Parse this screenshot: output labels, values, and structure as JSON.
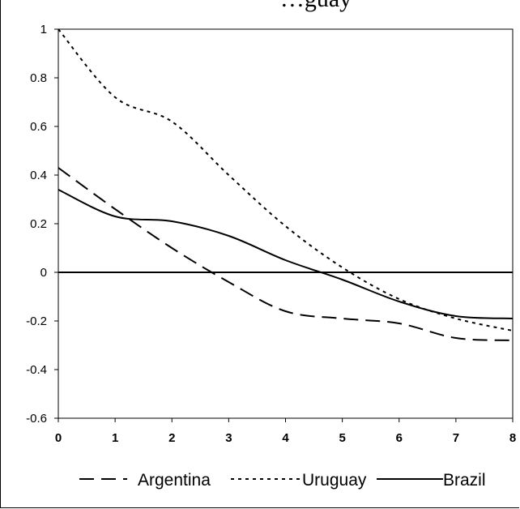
{
  "chart_data": {
    "type": "line",
    "title": "…guay",
    "xlabel": "",
    "ylabel": "",
    "xlim": [
      0,
      8
    ],
    "ylim": [
      -0.6,
      1
    ],
    "x_ticks": [
      "0",
      "1",
      "2",
      "3",
      "4",
      "5",
      "6",
      "7",
      "8"
    ],
    "y_ticks": [
      "1",
      "0.8",
      "0.6",
      "0.4",
      "0.2",
      "0",
      "-0.2",
      "-0.4",
      "-0.6"
    ],
    "grid": false,
    "legend_position": "bottom",
    "series": [
      {
        "name": "Argentina",
        "style": "long-dash",
        "x": [
          0,
          1,
          2,
          3,
          4,
          5,
          6,
          7,
          8
        ],
        "values": [
          0.43,
          0.26,
          0.1,
          -0.04,
          -0.16,
          -0.19,
          -0.21,
          -0.27,
          -0.28
        ]
      },
      {
        "name": "Uruguay",
        "style": "short-dash",
        "x": [
          0,
          1,
          2,
          3,
          4,
          5,
          6,
          7,
          8
        ],
        "values": [
          1.0,
          0.72,
          0.62,
          0.4,
          0.19,
          0.02,
          -0.11,
          -0.19,
          -0.24
        ]
      },
      {
        "name": "Brazil",
        "style": "solid",
        "x": [
          0,
          1,
          2,
          3,
          4,
          5,
          6,
          7,
          8
        ],
        "values": [
          0.34,
          0.23,
          0.21,
          0.15,
          0.05,
          -0.03,
          -0.12,
          -0.18,
          -0.19
        ]
      }
    ],
    "colors": {
      "line": "#000000",
      "axis": "#000000",
      "background": "#ffffff"
    }
  }
}
